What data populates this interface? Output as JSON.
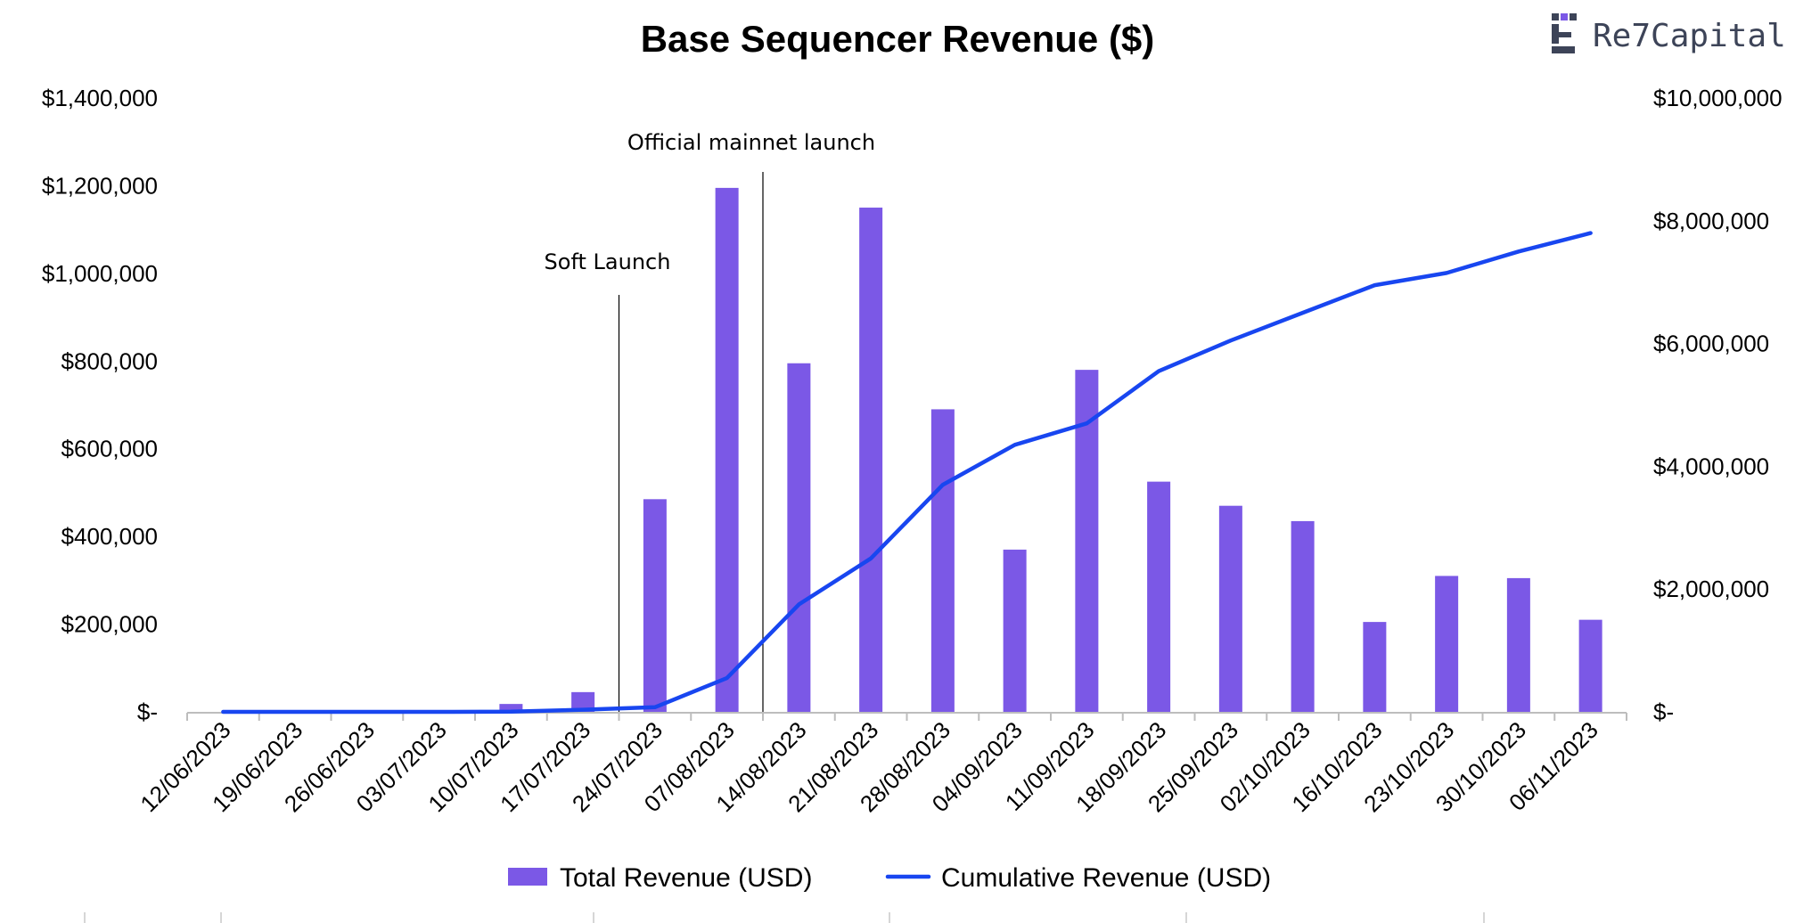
{
  "chart_data": {
    "type": "bar",
    "title": "Base Sequencer Revenue ($)",
    "categories": [
      "12/06/2023",
      "19/06/2023",
      "26/06/2023",
      "03/07/2023",
      "10/07/2023",
      "17/07/2023",
      "24/07/2023",
      "07/08/2023",
      "14/08/2023",
      "21/08/2023",
      "28/08/2023",
      "04/09/2023",
      "11/09/2023",
      "18/09/2023",
      "25/09/2023",
      "02/10/2023",
      "16/10/2023",
      "23/10/2023",
      "30/10/2023",
      "06/11/2023"
    ],
    "series": [
      {
        "name": "Total Revenue (USD)",
        "type": "bar",
        "axis": "left",
        "color": "#7b58e6",
        "values": [
          0,
          0,
          0,
          0,
          18000,
          45000,
          485000,
          1195000,
          795000,
          1150000,
          690000,
          370000,
          780000,
          525000,
          470000,
          435000,
          205000,
          310000,
          305000,
          210000
        ]
      },
      {
        "name": "Cumulative Revenue (USD)",
        "type": "line",
        "axis": "right",
        "color": "#1846f0",
        "values": [
          0,
          0,
          0,
          0,
          5000,
          35000,
          75000,
          550000,
          1750000,
          2500000,
          3700000,
          4350000,
          4700000,
          5550000,
          6050000,
          6500000,
          6950000,
          7150000,
          7500000,
          7800000
        ]
      }
    ],
    "y_left": {
      "min": 0,
      "max": 1400000,
      "ticks": [
        "$-",
        "$200,000",
        "$400,000",
        "$600,000",
        "$800,000",
        "$1,000,000",
        "$1,200,000",
        "$1,400,000"
      ]
    },
    "y_right": {
      "min": 0,
      "max": 10000000,
      "ticks": [
        "$-",
        "$2,000,000",
        "$4,000,000",
        "$6,000,000",
        "$8,000,000",
        "$10,000,000"
      ]
    },
    "annotations": [
      {
        "label": "Soft Launch",
        "between": [
          5,
          6
        ]
      },
      {
        "label": "Official mainnet launch",
        "between": [
          7,
          8
        ]
      }
    ],
    "legend": {
      "position": "bottom"
    }
  },
  "brand": {
    "name": "Re7Capital",
    "colors": [
      "#3d4458",
      "#7b58e6"
    ]
  }
}
